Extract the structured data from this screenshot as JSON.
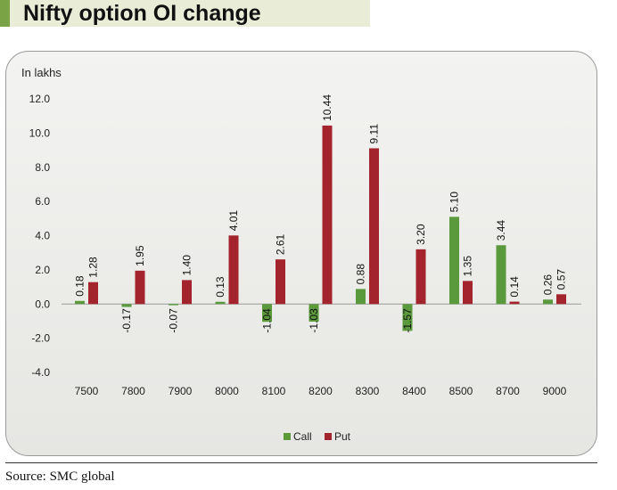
{
  "title": "Nifty option OI change",
  "source": "Source: SMC global",
  "chart_data": {
    "type": "bar",
    "title": "Nifty option OI change",
    "ylabel": "In lakhs",
    "xlabel": "",
    "categories": [
      "7500",
      "7800",
      "7900",
      "8000",
      "8100",
      "8200",
      "8300",
      "8400",
      "8500",
      "8700",
      "9000"
    ],
    "series": [
      {
        "name": "Call",
        "color": "#5a9a3c",
        "values": [
          0.18,
          -0.17,
          -0.07,
          0.13,
          -1.04,
          -1.03,
          0.88,
          -1.57,
          5.1,
          3.44,
          0.26
        ],
        "labels": [
          "0.18",
          "-0.17",
          "-0.07",
          "0.13",
          "-1.04",
          "-1.03",
          "0.88",
          "-1.57",
          "5.10",
          "3.44",
          "0.26"
        ]
      },
      {
        "name": "Put",
        "color": "#a3242c",
        "values": [
          1.28,
          1.95,
          1.4,
          4.01,
          2.61,
          10.44,
          9.11,
          3.2,
          1.35,
          0.14,
          0.57
        ],
        "labels": [
          "1.28",
          "1.95",
          "1.40",
          "4.01",
          "2.61",
          "10.44",
          "9.11",
          "3.20",
          "1.35",
          "0.14",
          "0.57"
        ]
      }
    ],
    "ylim": [
      -4.0,
      12.0
    ],
    "yticks": [
      "12.0",
      "10.0",
      "8.0",
      "6.0",
      "4.0",
      "2.0",
      "0.0",
      "-2.0",
      "-4.0"
    ],
    "grid": false,
    "legend": "bottom-center"
  }
}
